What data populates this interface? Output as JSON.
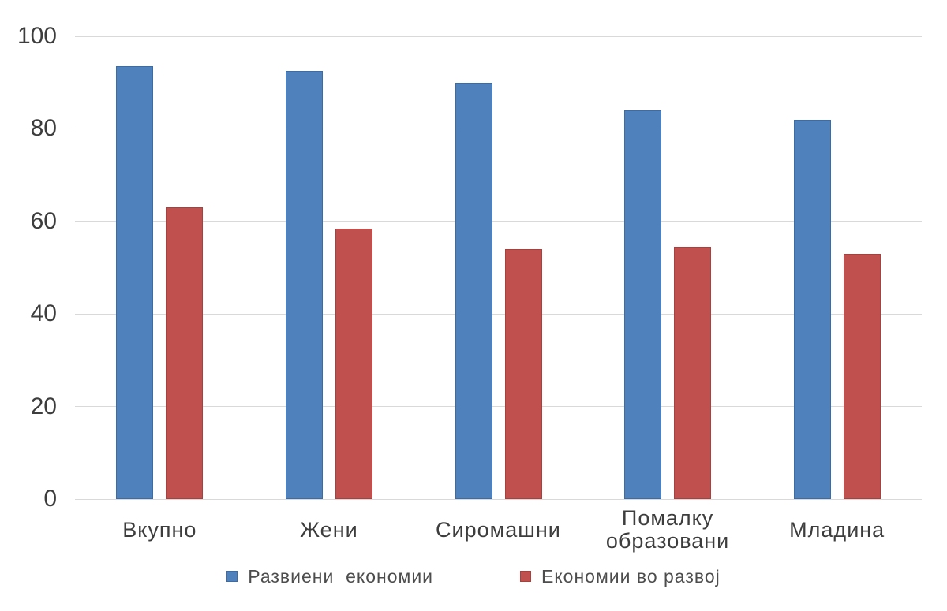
{
  "chart_data": {
    "type": "bar",
    "title": "",
    "xlabel": "",
    "ylabel": "",
    "categories": [
      "Вкупно",
      "Жени",
      "Сиромашни",
      "Помалку образовани",
      "Младина"
    ],
    "series": [
      {
        "name": "Развиени  економии",
        "color": "#4f81bd",
        "border_color": "#3b6ca8",
        "values": [
          93.5,
          92.5,
          90,
          84,
          82
        ]
      },
      {
        "name": "Економии во развој",
        "color": "#c0504d",
        "border_color": "#a8403e",
        "values": [
          63,
          58.5,
          54,
          54.5,
          53
        ]
      }
    ],
    "ylim": [
      0,
      100
    ],
    "yticks": [
      0,
      20,
      40,
      60,
      80,
      100
    ],
    "grid": true,
    "grid_color": "#d9d9d9",
    "axis_text_color": "#3d3d3d",
    "background": "#ffffff",
    "legend_position": "bottom"
  }
}
